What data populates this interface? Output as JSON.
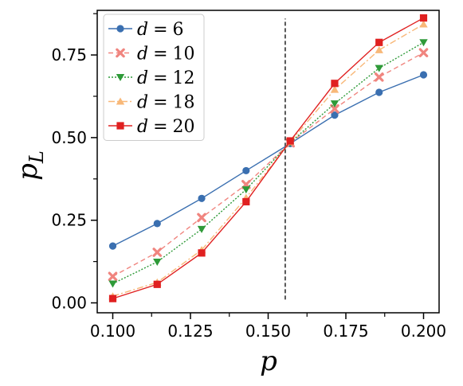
{
  "chart_data": {
    "type": "line",
    "title": "",
    "xlabel": "p",
    "ylabel": "p",
    "ylabel_subscript": "L",
    "xlim": [
      0.095,
      0.205
    ],
    "ylim": [
      -0.03,
      0.885
    ],
    "x_ticks": [
      0.1,
      0.125,
      0.15,
      0.175,
      0.2
    ],
    "x_tick_labels": [
      "0.100",
      "0.125",
      "0.150",
      "0.175",
      "0.200"
    ],
    "y_ticks": [
      0.0,
      0.25,
      0.5,
      0.75
    ],
    "y_tick_labels": [
      "0.00",
      "0.25",
      "0.50",
      "0.75"
    ],
    "grid": false,
    "legend_position": "top-left",
    "threshold_line": {
      "x": 0.1555,
      "y_range": [
        0.01,
        0.86
      ],
      "style": "dashed",
      "color": "#000000"
    },
    "x": [
      0.1,
      0.1143,
      0.1286,
      0.1429,
      0.1571,
      0.1714,
      0.1857,
      0.2
    ],
    "series": [
      {
        "name": "d = 6",
        "legend_d": "d",
        "legend_eq": "=",
        "legend_val": "6",
        "color": "#3a6fb0",
        "marker": "circle",
        "dash": "",
        "values": [
          0.172,
          0.24,
          0.316,
          0.4,
          0.482,
          0.568,
          0.637,
          0.69
        ]
      },
      {
        "name": "d = 10",
        "legend_d": "d",
        "legend_eq": "=",
        "legend_val": "10",
        "color": "#f0857f",
        "marker": "x",
        "dash": "6,4",
        "values": [
          0.08,
          0.153,
          0.258,
          0.358,
          0.484,
          0.587,
          0.683,
          0.757
        ]
      },
      {
        "name": "d = 12",
        "legend_d": "d",
        "legend_eq": "=",
        "legend_val": "12",
        "color": "#2e9a38",
        "marker": "triangle-down",
        "dash": "2,2",
        "values": [
          0.058,
          0.124,
          0.223,
          0.343,
          0.485,
          0.603,
          0.71,
          0.788
        ]
      },
      {
        "name": "d = 18",
        "legend_d": "d",
        "legend_eq": "=",
        "legend_val": "18",
        "color": "#f8b878",
        "marker": "triangle-up",
        "dash": "8,3,2,3",
        "values": [
          0.02,
          0.062,
          0.16,
          0.318,
          0.487,
          0.645,
          0.765,
          0.843
        ]
      },
      {
        "name": "d = 20",
        "legend_d": "d",
        "legend_eq": "=",
        "legend_val": "20",
        "color": "#e02020",
        "marker": "square",
        "dash": "",
        "values": [
          0.013,
          0.056,
          0.151,
          0.306,
          0.49,
          0.664,
          0.788,
          0.862
        ]
      }
    ]
  }
}
